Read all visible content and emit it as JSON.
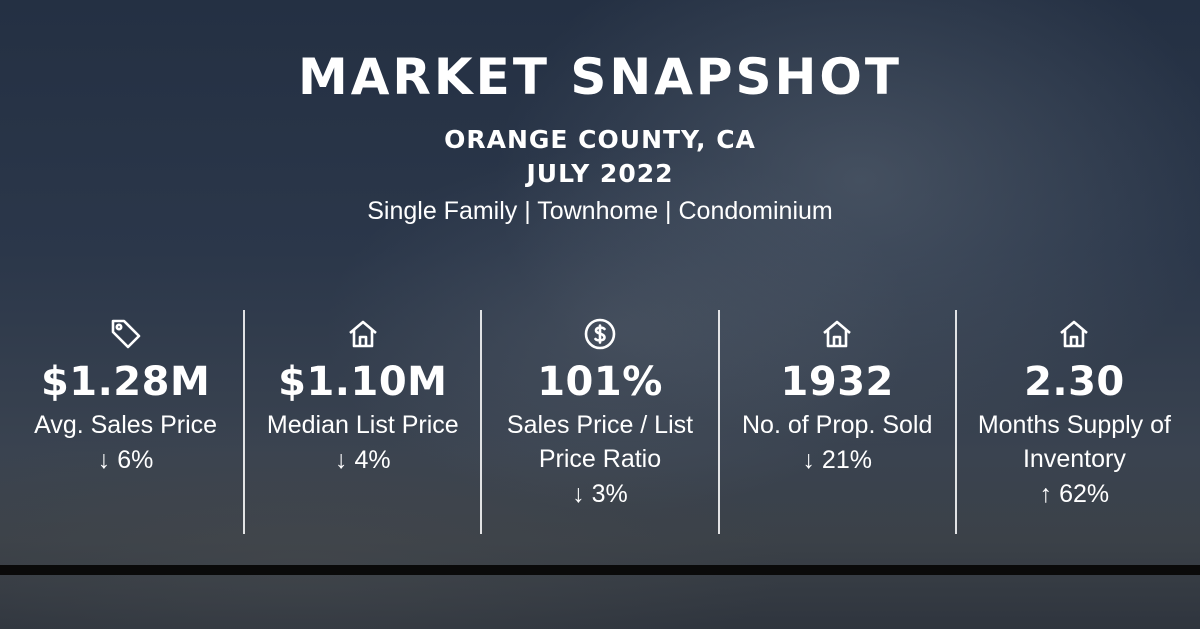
{
  "header": {
    "title": "MARKET SNAPSHOT",
    "location": "ORANGE COUNTY, CA",
    "period": "JULY 2022",
    "property_types": "Single Family | Townhome | Condominium"
  },
  "stats": [
    {
      "icon": "price-tag-icon",
      "value": "$1.28M",
      "label": "Avg. Sales Price",
      "change": "↓ 6%"
    },
    {
      "icon": "house-icon",
      "value": "$1.10M",
      "label": "Median List Price",
      "change": "↓ 4%"
    },
    {
      "icon": "dollar-circle-icon",
      "value": "101%",
      "label": "Sales Price / List Price Ratio",
      "change": "↓ 3%"
    },
    {
      "icon": "house-icon",
      "value": "1932",
      "label": "No. of Prop. Sold",
      "change": "↓ 21%"
    },
    {
      "icon": "house-icon",
      "value": "2.30",
      "label": "Months Supply of Inventory",
      "change": "↑ 62%"
    }
  ],
  "colors": {
    "background": "#2a3648",
    "text": "#ffffff",
    "bar": "#0a0a0a"
  }
}
